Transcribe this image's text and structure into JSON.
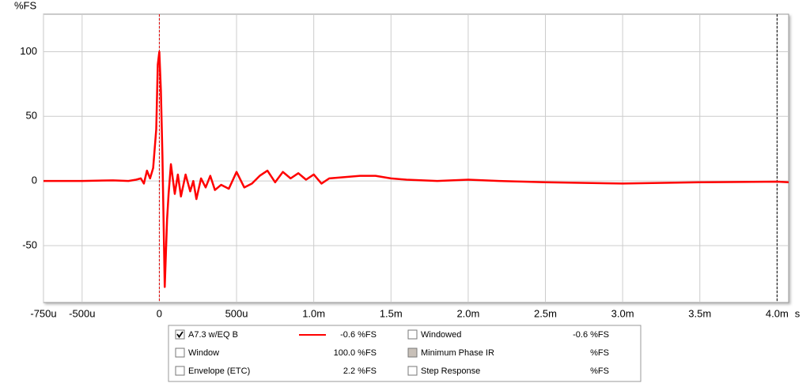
{
  "chart_data": {
    "type": "line",
    "y_label": "%FS",
    "x_unit": "s",
    "x": [
      -0.00075,
      -0.0005,
      -0.0003,
      -0.0002,
      -0.00015,
      -0.00012,
      -0.0001,
      -8e-05,
      -6e-05,
      -4e-05,
      -2e-05,
      -1e-05,
      0,
      1e-05,
      2e-05,
      3.5e-05,
      5e-05,
      6e-05,
      7.5e-05,
      0.0001,
      0.00012,
      0.00014,
      0.00017,
      0.0002,
      0.00022,
      0.00024,
      0.00027,
      0.0003,
      0.00033,
      0.00036,
      0.0004,
      0.00045,
      0.0005,
      0.00055,
      0.0006,
      0.00065,
      0.0007,
      0.00075,
      0.0008,
      0.00085,
      0.0009,
      0.00095,
      0.001,
      0.00105,
      0.0011,
      0.0012,
      0.0013,
      0.0014,
      0.0015,
      0.0016,
      0.0018,
      0.002,
      0.0022,
      0.0025,
      0.003,
      0.0035,
      0.004,
      0.004075
    ],
    "series": [
      {
        "name": "A7.3 w/EQ B",
        "color": "#ff0000",
        "values": [
          0,
          0,
          0.5,
          0,
          1,
          2,
          -2,
          8,
          2,
          10,
          40,
          90,
          100,
          70,
          20,
          -82,
          -30,
          -10,
          13,
          -10,
          5,
          -12,
          5,
          -8,
          0,
          -14,
          2,
          -5,
          4,
          -7,
          -3,
          -6,
          7,
          -5,
          -2,
          4,
          8,
          -1,
          7,
          2,
          6,
          1,
          5,
          -2,
          2,
          3,
          4,
          4,
          2,
          1,
          0,
          1,
          0,
          -1,
          -2,
          -1,
          -0.5,
          -1
        ]
      }
    ],
    "xlim": [
      -0.00075,
      0.004075
    ],
    "ylim": [
      -94,
      129
    ],
    "xticks": [
      {
        "value": -0.00075,
        "label": "-750u"
      },
      {
        "value": -0.0005,
        "label": "-500u"
      },
      0,
      {
        "value": 0.0005,
        "label": "500u"
      },
      {
        "value": 0.001,
        "label": "1.0m"
      },
      {
        "value": 0.0015,
        "label": "1.5m"
      },
      {
        "value": 0.002,
        "label": "2.0m"
      },
      {
        "value": 0.0025,
        "label": "2.5m"
      },
      {
        "value": 0.003,
        "label": "3.0m"
      },
      {
        "value": 0.0035,
        "label": "3.5m"
      },
      {
        "value": 0.004,
        "label": "4.0m"
      }
    ],
    "yticks": [
      -50,
      0,
      50,
      100
    ],
    "grid": true,
    "markers": [
      {
        "x": 0,
        "color": "#e00000"
      },
      {
        "x": 0.004,
        "color": "#000000"
      }
    ]
  },
  "panel": {
    "items": [
      {
        "label": "A7.3 w/EQ B",
        "readout": "-0.6 %FS",
        "color": "#c00000",
        "checked": true,
        "line": true
      },
      {
        "label": "Window",
        "readout": "100.0 %FS",
        "color": "#0000c0",
        "checked": false
      },
      {
        "label": "Envelope (ETC)",
        "readout": "2.2 %FS",
        "color": "#a00000",
        "checked": false
      },
      {
        "label": "Windowed",
        "readout": "-0.6 %FS",
        "color": "#c00000",
        "checked": false
      },
      {
        "label": "Minimum Phase IR",
        "readout": "%FS",
        "color": "#808080",
        "checked": false,
        "disabled": true
      },
      {
        "label": "Step Response",
        "readout": "%FS",
        "color": "#900000",
        "checked": false
      }
    ]
  }
}
